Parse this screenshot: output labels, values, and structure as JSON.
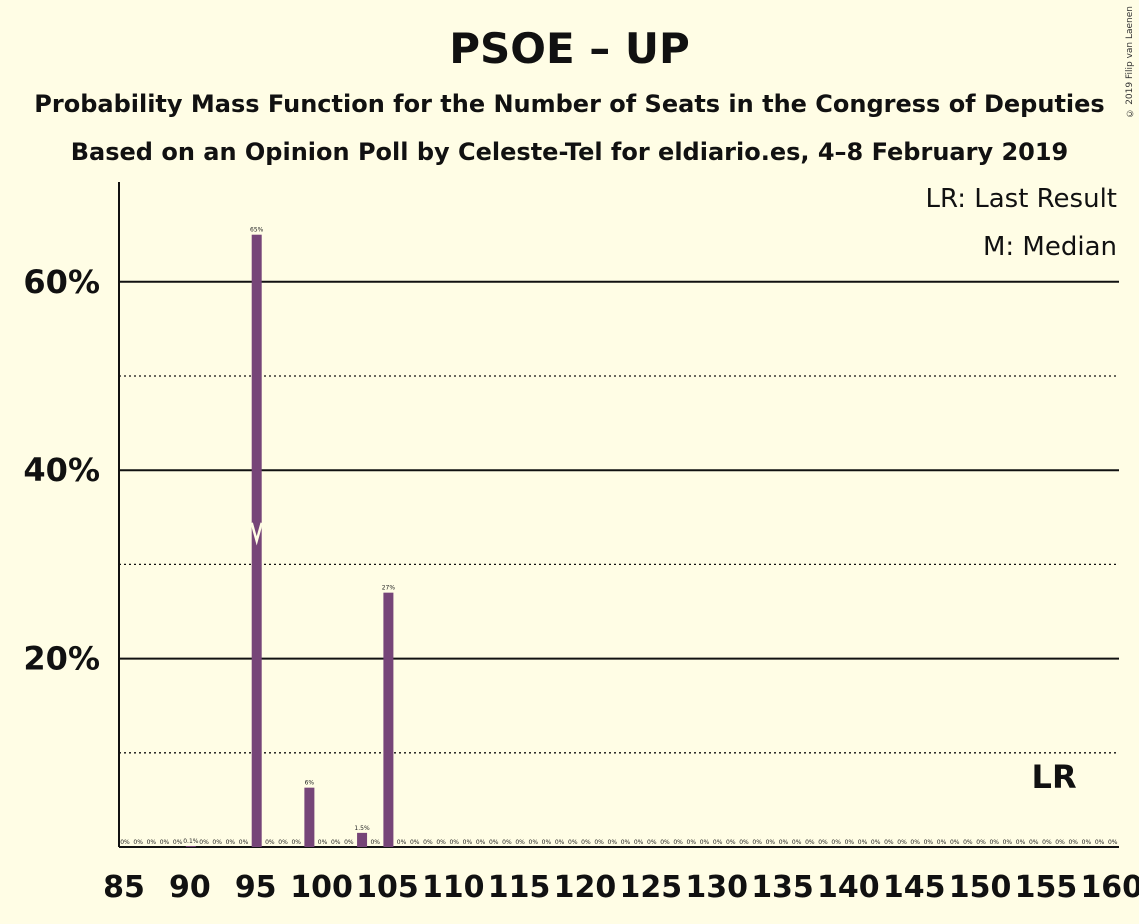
{
  "title": "PSOE – UP",
  "subtitle": "Probability Mass Function for the Number of Seats in the Congress of Deputies",
  "subtitle2": "Based on an Opinion Poll by Celeste-Tel for eldiario.es, 4–8 February 2019",
  "copyright": "© 2019 Filip van Laenen",
  "legend": {
    "last_result": "LR: Last Result",
    "median": "M: Median"
  },
  "colors": {
    "bar": "#764578",
    "background": "#FFFDE5"
  },
  "chart_data": {
    "type": "bar",
    "xlabel": "",
    "ylabel": "",
    "ylim": [
      0,
      70
    ],
    "yticks": [
      20,
      40,
      60
    ],
    "ytick_labels": [
      "20%",
      "40%",
      "60%"
    ],
    "grid": "solid at 20/40/60, dotted at 10/30/50",
    "xtick_labels": [
      "85",
      "90",
      "95",
      "100",
      "105",
      "110",
      "115",
      "120",
      "125",
      "130",
      "135",
      "140",
      "145",
      "150",
      "155",
      "160"
    ],
    "seats": [
      85,
      86,
      87,
      88,
      89,
      90,
      91,
      92,
      93,
      94,
      95,
      96,
      97,
      98,
      99,
      100,
      101,
      102,
      103,
      104,
      105,
      106,
      107,
      108,
      109,
      110,
      111,
      112,
      113,
      114,
      115,
      116,
      117,
      118,
      119,
      120,
      121,
      122,
      123,
      124,
      125,
      126,
      127,
      128,
      129,
      130,
      131,
      132,
      133,
      134,
      135,
      136,
      137,
      138,
      139,
      140,
      141,
      142,
      143,
      144,
      145,
      146,
      147,
      148,
      149,
      150,
      151,
      152,
      153,
      154,
      155,
      156,
      157,
      158,
      159,
      160
    ],
    "values": [
      0,
      0,
      0,
      0,
      0,
      0.1,
      0,
      0,
      0,
      0,
      65,
      0,
      0,
      0,
      6.3,
      0,
      0,
      0,
      1.5,
      0,
      27,
      0,
      0,
      0,
      0,
      0,
      0,
      0,
      0,
      0,
      0,
      0,
      0,
      0,
      0,
      0,
      0,
      0,
      0,
      0,
      0,
      0,
      0,
      0,
      0,
      0,
      0,
      0,
      0,
      0,
      0,
      0,
      0,
      0,
      0,
      0,
      0,
      0,
      0,
      0,
      0,
      0,
      0,
      0,
      0,
      0,
      0,
      0,
      0,
      0,
      0,
      0,
      0,
      0,
      0,
      0
    ],
    "labels": [
      "0%",
      "0%",
      "0%",
      "0%",
      "0%",
      "0.1%",
      "0%",
      "0%",
      "0%",
      "0%",
      "65%",
      "0%",
      "0%",
      "0%",
      "6%",
      "0%",
      "0%",
      "0%",
      "1.5%",
      "0%",
      "27%",
      "0%",
      "0%",
      "0%",
      "0%",
      "0%",
      "0%",
      "0%",
      "0%",
      "0%",
      "0%",
      "0%",
      "0%",
      "0%",
      "0%",
      "0%",
      "0%",
      "0%",
      "0%",
      "0%",
      "0%",
      "0%",
      "0%",
      "0%",
      "0%",
      "0%",
      "0%",
      "0%",
      "0%",
      "0%",
      "0%",
      "0%",
      "0%",
      "0%",
      "0%",
      "0%",
      "0%",
      "0%",
      "0%",
      "0%",
      "0%",
      "0%",
      "0%",
      "0%",
      "0%",
      "0%",
      "0%",
      "0%",
      "0%",
      "0%",
      "0%",
      "0%",
      "0%",
      "0%",
      "0%",
      "0%"
    ],
    "median_seat": 95,
    "last_result_seat": 156,
    "last_result_marker": "LR"
  }
}
